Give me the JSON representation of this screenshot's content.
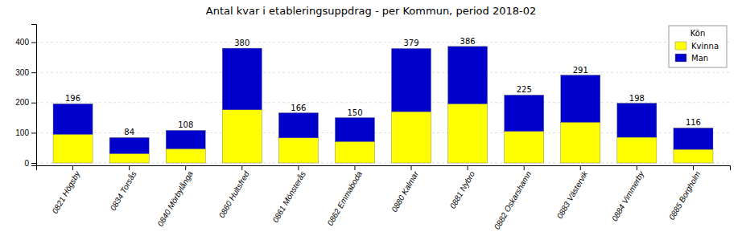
{
  "chart_data": {
    "type": "bar",
    "stacked": true,
    "title": "Antal kvar i etableringsuppdrag - per Kommun, period 2018-02",
    "categories": [
      "0821 Högsby",
      "0834 Torsås",
      "0840 Mörbylånga",
      "0860 Hultsfred",
      "0861 Mönsterås",
      "0862 Emmaboda",
      "0880 Kalmar",
      "0881 Nybro",
      "0882 Oskarshamn",
      "0883 Västervik",
      "0884 Vimmerby",
      "0885 Borgholm"
    ],
    "series": [
      {
        "name": "Kvinna",
        "color": "#FFFF00",
        "values": [
          95,
          31,
          47,
          176,
          83,
          71,
          170,
          196,
          105,
          135,
          85,
          45
        ]
      },
      {
        "name": "Man",
        "color": "#0000CC",
        "values": [
          101,
          53,
          61,
          204,
          83,
          79,
          209,
          190,
          120,
          156,
          113,
          71
        ]
      }
    ],
    "totals": [
      196,
      84,
      108,
      380,
      166,
      150,
      379,
      386,
      225,
      291,
      198,
      116
    ],
    "legend_title": "Kön",
    "legend": "upper right",
    "ylim": [
      -8,
      460
    ],
    "yticks": [
      0,
      100,
      200,
      300,
      400
    ],
    "grid": true
  }
}
